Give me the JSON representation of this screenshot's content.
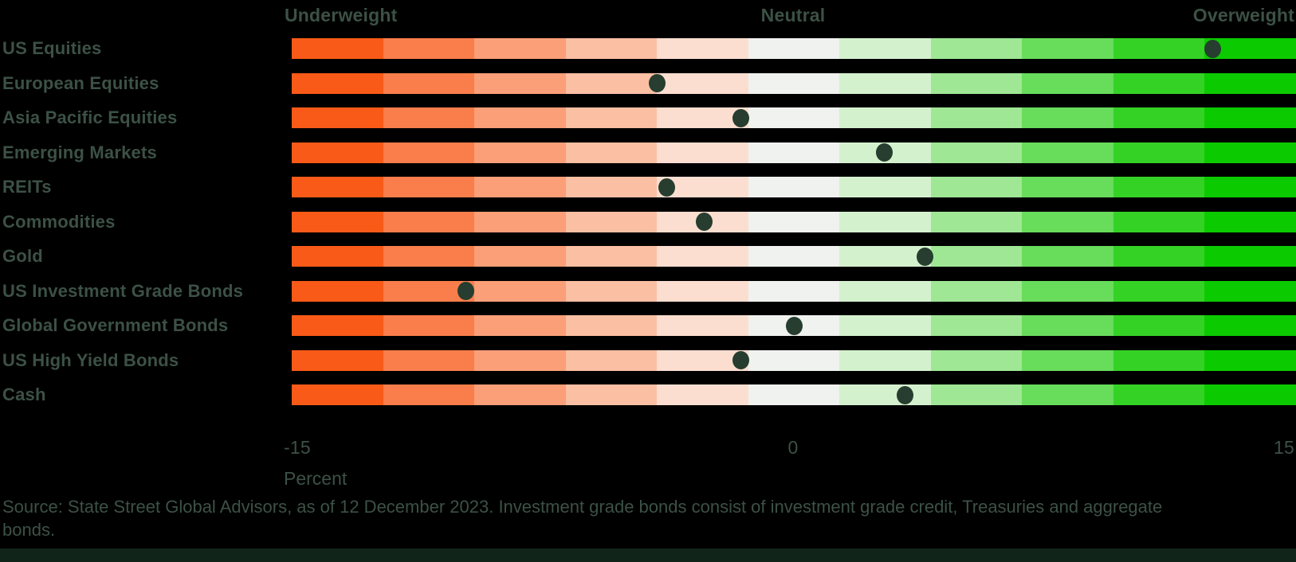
{
  "header": {
    "underweight_label": "Underweight",
    "neutral_label": "Neutral",
    "overweight_label": "Overweight"
  },
  "axis": {
    "min_tick": "-15",
    "mid_tick": "0",
    "max_tick": "15",
    "unit_label": "Percent",
    "min": -15,
    "max": 15
  },
  "source_note": "Source: State Street Global Advisors, as of 12 December 2023. Investment grade bonds consist of investment grade credit, Treasuries and aggregate bonds.",
  "colors": {
    "background": "#000000",
    "text": "#3C5146",
    "dot": "#263D2F",
    "footer_strip": "#112419",
    "gradient_segments": [
      "#F95A17",
      "#F97E4B",
      "#FA9F78",
      "#FBBFA3",
      "#FCDED0",
      "#EFF2EE",
      "#D4F1CE",
      "#9FE795",
      "#68DC5B",
      "#35D226",
      "#0BCB00"
    ]
  },
  "chart_data": {
    "type": "scatter",
    "subtype": "diverging-dot-strip-plot",
    "title": "",
    "xlabel": "Percent",
    "ylabel": "",
    "xlim": [
      -15,
      15
    ],
    "x_ticks": [
      -15,
      0,
      15
    ],
    "zone_labels": [
      "Underweight",
      "Neutral",
      "Overweight"
    ],
    "gradient_segment_count": 11,
    "grid": false,
    "legend_position": "none",
    "categories": [
      "US Equities",
      "European Equities",
      "Asia Pacific Equities",
      "Emerging Markets",
      "REITs",
      "Commodities",
      "Gold",
      "US Investment Grade Bonds",
      "Global Government Bonds",
      "US High Yield Bonds",
      "Cash"
    ],
    "values": [
      12.5,
      -4.1,
      -1.6,
      2.7,
      -3.8,
      -2.7,
      3.9,
      -9.8,
      0,
      -1.6,
      3.3
    ]
  }
}
